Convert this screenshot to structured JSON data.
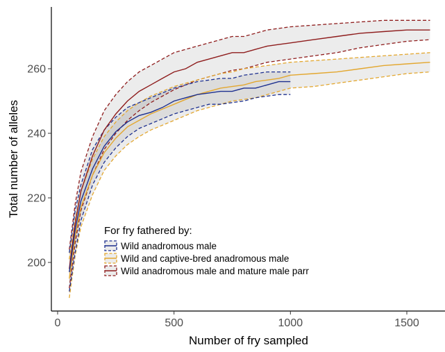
{
  "chart_data": {
    "type": "line",
    "xlabel": "Number of fry sampled",
    "ylabel": "Total number of alleles",
    "xlim": [
      0,
      1650
    ],
    "ylim": [
      185,
      276
    ],
    "x_ticks": [
      0,
      500,
      1000,
      1500
    ],
    "y_ticks": [
      200,
      220,
      240,
      260
    ],
    "grid": false,
    "legend": {
      "title": "For fry fathered by:",
      "position": "bottom-left inside"
    },
    "series": [
      {
        "name": "Wild anadromous male",
        "color": "#1c2f8f",
        "x": [
          50,
          75,
          100,
          150,
          200,
          250,
          300,
          350,
          400,
          450,
          500,
          550,
          600,
          650,
          700,
          750,
          800,
          850,
          900,
          950,
          1000
        ],
        "mean": [
          197,
          210,
          219,
          229,
          236,
          240.5,
          243.5,
          245.5,
          246.5,
          248,
          250,
          251,
          252,
          252.5,
          253,
          253,
          254,
          254,
          255,
          256,
          256
        ],
        "lower": [
          191,
          203,
          213,
          224,
          231,
          235.5,
          239,
          241.5,
          243,
          244.5,
          246,
          247,
          248,
          249,
          249,
          249.5,
          250,
          251,
          251.5,
          252,
          252
        ],
        "upper": [
          203,
          216,
          224,
          235,
          241,
          245,
          248,
          249.5,
          251,
          252.5,
          254,
          255,
          256,
          256.5,
          257,
          257,
          258,
          258.5,
          259,
          259,
          259
        ]
      },
      {
        "name": "Wild and captive-bred anadromous male",
        "color": "#e3a72f",
        "x": [
          50,
          75,
          100,
          150,
          200,
          250,
          300,
          350,
          400,
          450,
          500,
          550,
          600,
          650,
          700,
          750,
          800,
          850,
          900,
          950,
          1000,
          1100,
          1200,
          1300,
          1400,
          1500,
          1600
        ],
        "mean": [
          195,
          208,
          217,
          227,
          234,
          238.5,
          242,
          244,
          246,
          247.5,
          249,
          250.5,
          252,
          253,
          254,
          254.5,
          255,
          256,
          256.5,
          257,
          258,
          258.5,
          259,
          260,
          261,
          261.5,
          262
        ],
        "lower": [
          189,
          202,
          211,
          221,
          228.5,
          233,
          236.5,
          239,
          241,
          242.5,
          244,
          245.5,
          247,
          248,
          249,
          250,
          250.5,
          251,
          252,
          253,
          254,
          254.5,
          255.5,
          256.5,
          257.5,
          258.5,
          259
        ],
        "upper": [
          201,
          213,
          222,
          232,
          239,
          243.5,
          247,
          249.5,
          251.5,
          253,
          254.5,
          255.5,
          256.5,
          257.5,
          258.5,
          259,
          260,
          260.5,
          261,
          261.5,
          262,
          262.5,
          263,
          263.5,
          264,
          264.5,
          265
        ]
      },
      {
        "name": "Wild anadromous male and mature male parr",
        "color": "#8e1c1c",
        "x": [
          50,
          75,
          100,
          150,
          200,
          250,
          300,
          350,
          400,
          450,
          500,
          550,
          600,
          650,
          700,
          750,
          800,
          850,
          900,
          950,
          1000,
          1100,
          1200,
          1300,
          1400,
          1500,
          1600
        ],
        "mean": [
          198,
          212,
          222,
          233,
          241,
          246,
          250,
          253,
          255,
          257,
          259,
          260,
          262,
          263,
          264,
          265,
          265,
          266,
          267,
          267.5,
          268,
          269,
          270,
          271,
          271.5,
          272,
          272
        ],
        "lower": [
          192,
          206,
          216,
          227,
          235,
          240,
          244,
          247,
          249.5,
          251.5,
          253.5,
          255,
          256.5,
          257.5,
          258.5,
          259.5,
          260,
          261,
          262,
          262.5,
          263,
          264,
          265,
          266.5,
          267.5,
          268.5,
          269
        ],
        "upper": [
          204,
          218,
          228,
          239,
          247,
          252,
          256,
          259,
          261,
          263,
          265,
          266,
          267,
          268,
          269,
          270,
          270,
          271,
          272,
          272.5,
          273,
          273.5,
          274,
          274.5,
          275,
          275,
          275
        ]
      }
    ]
  }
}
